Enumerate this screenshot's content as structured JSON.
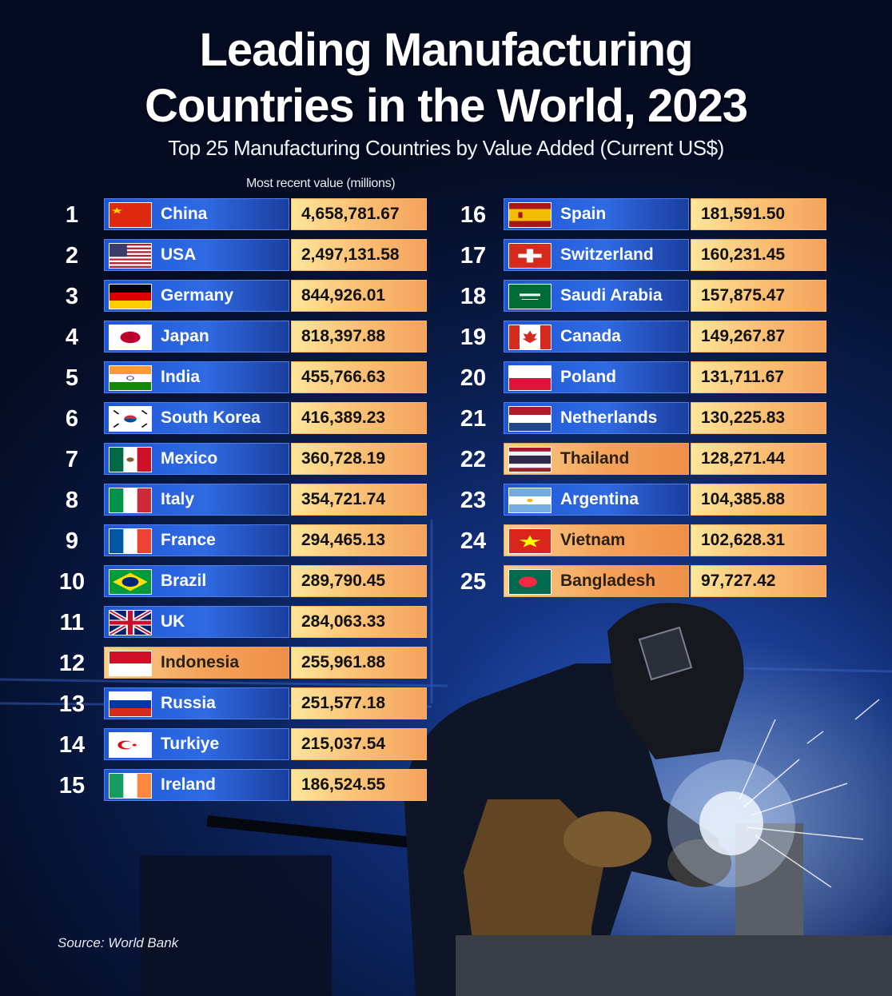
{
  "chart_data": {
    "type": "table",
    "title_line1": "Leading Manufacturing",
    "title_line2": "Countries in the World, 2023",
    "subtitle": "Top 25 Manufacturing Countries by Value Added (Current US$)",
    "column_header": "Most recent value (millions)",
    "source": "Source: World Bank",
    "rows": [
      {
        "rank": "1",
        "country": "China",
        "flag": "china",
        "value": "4,658,781.67"
      },
      {
        "rank": "2",
        "country": "USA",
        "flag": "usa",
        "value": "2,497,131.58"
      },
      {
        "rank": "3",
        "country": "Germany",
        "flag": "germany",
        "value": "844,926.01"
      },
      {
        "rank": "4",
        "country": "Japan",
        "flag": "japan",
        "value": "818,397.88"
      },
      {
        "rank": "5",
        "country": "India",
        "flag": "india",
        "value": "455,766.63"
      },
      {
        "rank": "6",
        "country": "South Korea",
        "flag": "south-korea",
        "value": "416,389.23"
      },
      {
        "rank": "7",
        "country": "Mexico",
        "flag": "mexico",
        "value": "360,728.19"
      },
      {
        "rank": "8",
        "country": "Italy",
        "flag": "italy",
        "value": "354,721.74"
      },
      {
        "rank": "9",
        "country": "France",
        "flag": "france",
        "value": "294,465.13"
      },
      {
        "rank": "10",
        "country": "Brazil",
        "flag": "brazil",
        "value": "289,790.45"
      },
      {
        "rank": "11",
        "country": "UK",
        "flag": "uk",
        "value": "284,063.33"
      },
      {
        "rank": "12",
        "country": "Indonesia",
        "flag": "indonesia",
        "value": "255,961.88",
        "highlight": "orange"
      },
      {
        "rank": "13",
        "country": "Russia",
        "flag": "russia",
        "value": "251,577.18"
      },
      {
        "rank": "14",
        "country": "Turkiye",
        "flag": "turkiye",
        "value": "215,037.54"
      },
      {
        "rank": "15",
        "country": "Ireland",
        "flag": "ireland",
        "value": "186,524.55"
      },
      {
        "rank": "16",
        "country": "Spain",
        "flag": "spain",
        "value": "181,591.50"
      },
      {
        "rank": "17",
        "country": "Switzerland",
        "flag": "switzerland",
        "value": "160,231.45"
      },
      {
        "rank": "18",
        "country": "Saudi Arabia",
        "flag": "saudi-arabia",
        "value": "157,875.47"
      },
      {
        "rank": "19",
        "country": "Canada",
        "flag": "canada",
        "value": "149,267.87"
      },
      {
        "rank": "20",
        "country": "Poland",
        "flag": "poland",
        "value": "131,711.67"
      },
      {
        "rank": "21",
        "country": "Netherlands",
        "flag": "netherlands",
        "value": "130,225.83"
      },
      {
        "rank": "22",
        "country": "Thailand",
        "flag": "thailand",
        "value": "128,271.44",
        "highlight": "orange"
      },
      {
        "rank": "23",
        "country": "Argentina",
        "flag": "argentina",
        "value": "104,385.88"
      },
      {
        "rank": "24",
        "country": "Vietnam",
        "flag": "vietnam",
        "value": "102,628.31",
        "highlight": "orange"
      },
      {
        "rank": "25",
        "country": "Bangladesh",
        "flag": "bangladesh",
        "value": "97,727.42",
        "highlight": "orange"
      }
    ]
  },
  "colors": {
    "name_cell_blue": "#2f6ae2",
    "name_cell_orange": "#f4a25a",
    "value_cell": "#fbc478",
    "background": "#0f2c74"
  }
}
